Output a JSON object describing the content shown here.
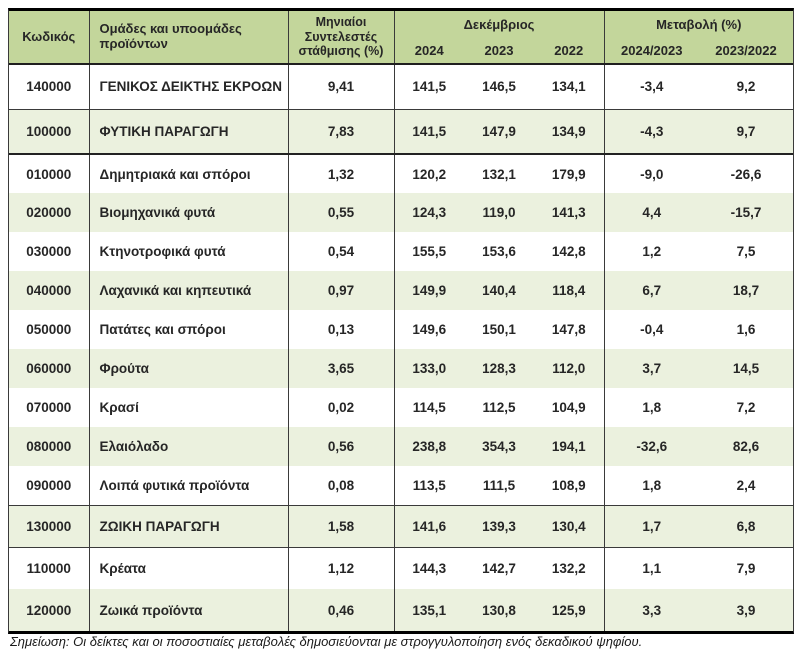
{
  "table": {
    "headers": {
      "code": "Κωδικός",
      "groups": "Ομάδες και υποομάδες προϊόντων",
      "weight": "Μηνιαίοι Συντελεστές στάθμισης (%)",
      "december_group": "Δεκέμβριος",
      "december_years": [
        "2024",
        "2023",
        "2022"
      ],
      "change_group": "Μεταβολή (%)",
      "change_periods": [
        "2024/2023",
        "2023/2022"
      ]
    },
    "rows": [
      {
        "code": "140000",
        "name": "ΓΕΝΙΚΟΣ ΔΕΙΚΤΗΣ ΕΚΡΟΩΝ",
        "weight": "9,41",
        "december": [
          "141,5",
          "146,5",
          "134,1"
        ],
        "change": [
          "-3,4",
          "9,2"
        ],
        "shade": false,
        "sep": "thin"
      },
      {
        "code": "100000",
        "name": "ΦΥΤΙΚΗ ΠΑΡΑΓΩΓΗ",
        "weight": "7,83",
        "december": [
          "141,5",
          "147,9",
          "134,9"
        ],
        "change": [
          "-4,3",
          "9,7"
        ],
        "shade": true,
        "sep": "thick"
      },
      {
        "code": "010000",
        "name": "Δημητριακά και σπόροι",
        "weight": "1,32",
        "december": [
          "120,2",
          "132,1",
          "179,9"
        ],
        "change": [
          "-9,0",
          "-26,6"
        ],
        "shade": false,
        "sep": "none"
      },
      {
        "code": "020000",
        "name": "Βιομηχανικά φυτά",
        "weight": "0,55",
        "december": [
          "124,3",
          "119,0",
          "141,3"
        ],
        "change": [
          "4,4",
          "-15,7"
        ],
        "shade": true,
        "sep": "none"
      },
      {
        "code": "030000",
        "name": "Κτηνοτροφικά φυτά",
        "weight": "0,54",
        "december": [
          "155,5",
          "153,6",
          "142,8"
        ],
        "change": [
          "1,2",
          "7,5"
        ],
        "shade": false,
        "sep": "none"
      },
      {
        "code": "040000",
        "name": "Λαχανικά και κηπευτικά",
        "weight": "0,97",
        "december": [
          "149,9",
          "140,4",
          "118,4"
        ],
        "change": [
          "6,7",
          "18,7"
        ],
        "shade": true,
        "sep": "none"
      },
      {
        "code": "050000",
        "name": "Πατάτες και σπόροι",
        "weight": "0,13",
        "december": [
          "149,6",
          "150,1",
          "147,8"
        ],
        "change": [
          "-0,4",
          "1,6"
        ],
        "shade": false,
        "sep": "none"
      },
      {
        "code": "060000",
        "name": "Φρούτα",
        "weight": "3,65",
        "december": [
          "133,0",
          "128,3",
          "112,0"
        ],
        "change": [
          "3,7",
          "14,5"
        ],
        "shade": true,
        "sep": "none"
      },
      {
        "code": "070000",
        "name": "Κρασί",
        "weight": "0,02",
        "december": [
          "114,5",
          "112,5",
          "104,9"
        ],
        "change": [
          "1,8",
          "7,2"
        ],
        "shade": false,
        "sep": "none"
      },
      {
        "code": "080000",
        "name": "Ελαιόλαδο",
        "weight": "0,56",
        "december": [
          "238,8",
          "354,3",
          "194,1"
        ],
        "change": [
          "-32,6",
          "82,6"
        ],
        "shade": true,
        "sep": "none"
      },
      {
        "code": "090000",
        "name": "Λοιπά φυτικά προϊόντα",
        "weight": "0,08",
        "december": [
          "113,5",
          "111,5",
          "108,9"
        ],
        "change": [
          "1,8",
          "2,4"
        ],
        "shade": false,
        "sep": "thin"
      },
      {
        "code": "130000",
        "name": "ΖΩΙΚΗ ΠΑΡΑΓΩΓΗ",
        "weight": "1,58",
        "december": [
          "141,6",
          "139,3",
          "130,4"
        ],
        "change": [
          "1,7",
          "6,8"
        ],
        "shade": true,
        "sep": "thin"
      },
      {
        "code": "110000",
        "name": "Κρέατα",
        "weight": "1,12",
        "december": [
          "144,3",
          "142,7",
          "132,2"
        ],
        "change": [
          "1,1",
          "7,9"
        ],
        "shade": false,
        "sep": "none"
      },
      {
        "code": "120000",
        "name": "Ζωικά προϊόντα",
        "weight": "0,46",
        "december": [
          "135,1",
          "130,8",
          "125,9"
        ],
        "change": [
          "3,3",
          "3,9"
        ],
        "shade": true,
        "sep": "none"
      }
    ]
  },
  "footnote": "Σημείωση: Οι δείκτες και οι ποσοστιαίες μεταβολές δημοσιεύονται με στρογγυλοποίηση ενός δεκαδικού ψηφίου.",
  "colors": {
    "header_bg": "#c3d69b",
    "row_shade_bg": "#ebf1de",
    "border_thick": "#000000",
    "border_thin": "#3a3a3a",
    "text": "#262626"
  }
}
